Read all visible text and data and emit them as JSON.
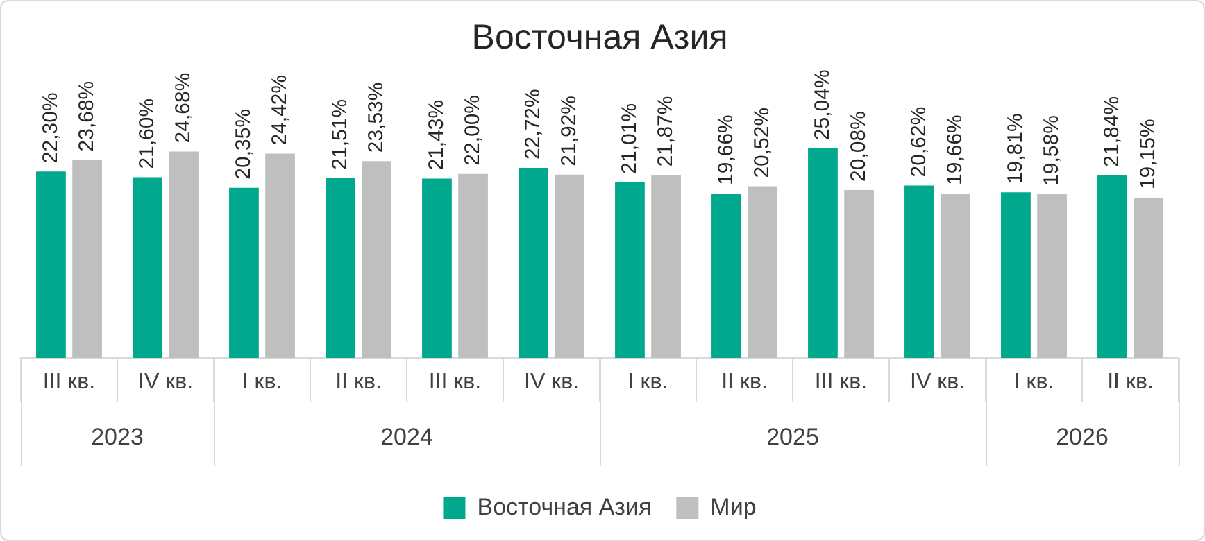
{
  "chart_data": {
    "type": "bar",
    "title": "Восточная Азия",
    "categories": [
      "III кв.",
      "IV кв.",
      "I кв.",
      "II кв.",
      "III кв.",
      "IV кв.",
      "I кв.",
      "II кв.",
      "III кв.",
      "IV кв.",
      "I кв.",
      "II кв."
    ],
    "series": [
      {
        "name": "Восточная Азия",
        "color": "#00a88e",
        "values": [
          22.3,
          21.6,
          20.35,
          21.51,
          21.43,
          22.72,
          21.01,
          19.66,
          25.04,
          20.62,
          19.81,
          21.84
        ],
        "value_labels": [
          "22,30%",
          "21,60%",
          "20,35%",
          "21,51%",
          "21,43%",
          "22,72%",
          "21,01%",
          "19,66%",
          "25,04%",
          "20,62%",
          "19,81%",
          "21,84%"
        ]
      },
      {
        "name": "Мир",
        "color": "#bfbfbf",
        "values": [
          23.68,
          24.68,
          24.42,
          23.53,
          22.0,
          21.92,
          21.87,
          20.52,
          20.08,
          19.66,
          19.58,
          19.15
        ],
        "value_labels": [
          "23,68%",
          "24,68%",
          "24,42%",
          "23,53%",
          "22,00%",
          "21,92%",
          "21,87%",
          "20,52%",
          "20,08%",
          "19,66%",
          "19,58%",
          "19,15%"
        ]
      }
    ],
    "annotations": [
      "2023",
      "2024",
      "2025",
      "2026"
    ],
    "legend": "bottom",
    "grid": false
  }
}
